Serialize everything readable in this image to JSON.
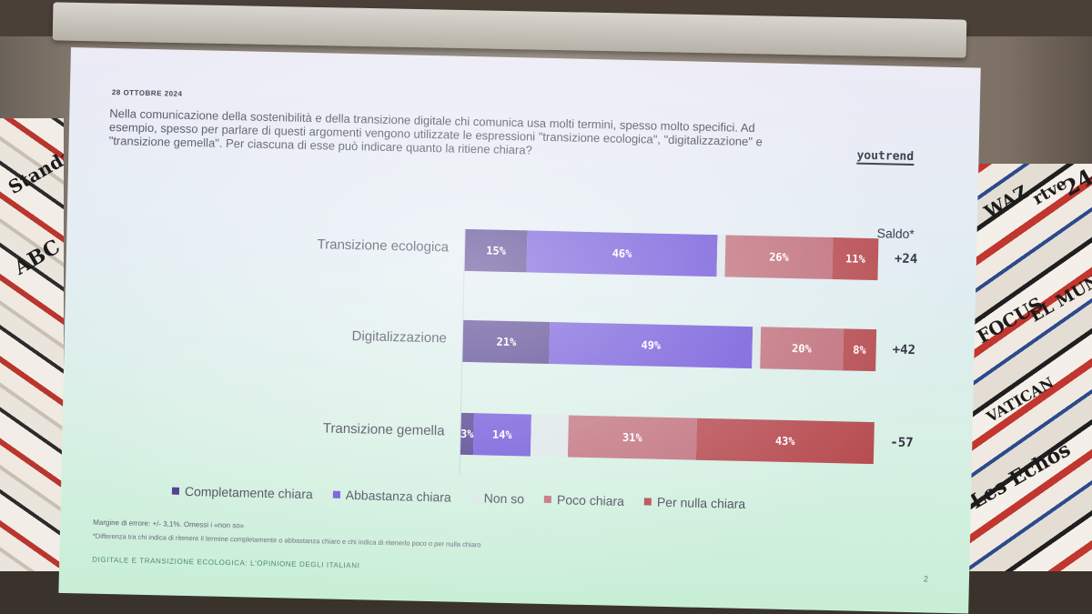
{
  "slide": {
    "date": "28 OTTOBRE 2024",
    "question": "Nella comunicazione della sostenibilità e della transizione digitale chi comunica usa molti termini, spesso molto specifici. Ad esempio, spesso per parlare di questi argomenti vengono utilizzate le espressioni \"transizione ecologica\", \"digitalizzazione\" e \"transizione gemella\". Per ciascuna di esse può indicare quanto la ritiene chiara?",
    "logo": "youtrend",
    "saldo_header": "Saldo*",
    "note_margin": "Margine di errore: +/- 3,1%. Omessi i «non so»",
    "note_saldo": "*Differenza tra chi indica di ritenere il termine completamente o abbastanza chiaro e chi indica di ritenerlo poco o per nulla chiaro",
    "footer": "DIGITALE E TRANSIZIONE ECOLOGICA: L'OPINIONE DEGLI ITALIANI",
    "page_number": "2"
  },
  "chart_data": {
    "type": "bar",
    "orientation": "horizontal-stacked",
    "categories": [
      "Transizione ecologica",
      "Digitalizzazione",
      "Transizione gemella"
    ],
    "series": [
      {
        "name": "Completamente chiara",
        "values": [
          15,
          21,
          3
        ],
        "labels": [
          "15%",
          "21%",
          "3%"
        ],
        "color": "#4e3b8c"
      },
      {
        "name": "Abbastanza chiara",
        "values": [
          46,
          49,
          14
        ],
        "labels": [
          "46%",
          "49%",
          "14%"
        ],
        "color": "#6f55d9"
      },
      {
        "name": "Non so",
        "values": [
          2,
          2,
          9
        ],
        "labels": [
          "",
          "",
          ""
        ],
        "color": "#dde6e8"
      },
      {
        "name": "Poco chiara",
        "values": [
          26,
          20,
          31
        ],
        "labels": [
          "26%",
          "20%",
          "31%"
        ],
        "color": "#c0707c"
      },
      {
        "name": "Per nulla chiara",
        "values": [
          11,
          8,
          43
        ],
        "labels": [
          "11%",
          "8%",
          "43%"
        ],
        "color": "#b64b50"
      }
    ],
    "saldo": [
      "+24",
      "+42",
      "-57"
    ],
    "legend_position": "bottom"
  },
  "wall_words": [
    "Standard",
    "ABC",
    "WAZ",
    "rtve",
    "24",
    "FOCUS",
    "EL MUNDO",
    "Les Echos",
    "VATICAN"
  ]
}
